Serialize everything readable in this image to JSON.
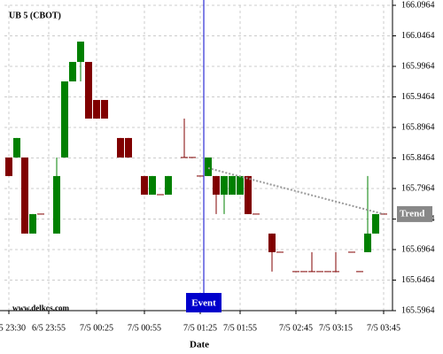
{
  "chart_data": {
    "type": "candlestick",
    "title": "UB 5 (CBOT)",
    "watermark": "www.delkos.com",
    "xlabel": "Date",
    "categories": [
      "6/5 23:30",
      null,
      null,
      null,
      null,
      "6/5 23:55",
      null,
      null,
      null,
      null,
      null,
      "7/5 00:25",
      null,
      null,
      null,
      null,
      null,
      "7/5 00:55",
      null,
      null,
      null,
      null,
      null,
      null,
      "7/5 01:25",
      null,
      null,
      null,
      null,
      "7/5 01:55",
      null,
      null,
      null,
      null,
      null,
      null,
      "7/5 02:45",
      null,
      null,
      null,
      null,
      "7/5 03:15",
      null,
      null,
      null,
      null,
      null,
      "7/5 03:45"
    ],
    "open": [
      165.8472,
      165.8472,
      165.8472,
      165.7226,
      165.7545,
      null,
      165.7226,
      165.8472,
      165.9718,
      166.0037,
      166.0037,
      165.9414,
      165.9414,
      null,
      165.8791,
      165.8791,
      null,
      165.8168,
      165.7863,
      165.7863,
      165.7863,
      null,
      165.8472,
      165.8472,
      165.8168,
      165.8168,
      165.8168,
      165.7863,
      165.7863,
      165.7863,
      165.8168,
      165.7545,
      null,
      165.7226,
      165.6921,
      null,
      165.6603,
      165.6603,
      165.6603,
      165.6603,
      165.6603,
      165.6603,
      null,
      165.6921,
      165.6603,
      165.6921,
      165.7226,
      165.7545
    ],
    "high": [
      165.8472,
      165.8791,
      165.8472,
      165.7545,
      165.7545,
      null,
      165.8472,
      165.9718,
      166.0037,
      166.037,
      166.0037,
      165.9414,
      165.9414,
      null,
      165.8791,
      165.8791,
      null,
      165.8168,
      165.8168,
      165.7863,
      165.8168,
      null,
      165.9109,
      165.8472,
      165.8168,
      165.8472,
      165.8168,
      165.8168,
      165.8168,
      165.8168,
      165.8168,
      165.7545,
      null,
      165.7226,
      165.6921,
      null,
      165.6603,
      165.6603,
      165.6921,
      165.6603,
      165.6603,
      165.6921,
      null,
      165.6921,
      165.6603,
      165.8168,
      165.7545,
      165.7545
    ],
    "low": [
      165.8168,
      165.8472,
      165.7226,
      165.7226,
      165.7545,
      null,
      165.7226,
      165.8472,
      165.9718,
      165.9718,
      165.9109,
      165.9109,
      165.9109,
      null,
      165.8472,
      165.8472,
      null,
      165.7863,
      165.7863,
      165.7863,
      165.7863,
      null,
      165.8472,
      165.8472,
      165.8168,
      165.8168,
      165.7545,
      165.7545,
      165.7863,
      165.7863,
      165.7545,
      165.7545,
      null,
      165.6603,
      165.6921,
      null,
      165.6603,
      165.6603,
      165.6603,
      165.6603,
      165.6603,
      165.6603,
      null,
      165.6921,
      165.6603,
      165.6921,
      165.7226,
      165.7545
    ],
    "close": [
      165.8168,
      165.8791,
      165.7226,
      165.7545,
      165.7545,
      null,
      165.8168,
      165.9718,
      166.0037,
      166.037,
      165.9109,
      165.9109,
      165.9109,
      null,
      165.8472,
      165.8472,
      null,
      165.7863,
      165.8168,
      165.7863,
      165.8168,
      null,
      165.8472,
      165.8472,
      165.8168,
      165.8472,
      165.7863,
      165.8168,
      165.8168,
      165.8168,
      165.7545,
      165.7545,
      null,
      165.6921,
      165.6921,
      null,
      165.6603,
      165.6603,
      165.6603,
      165.6603,
      165.6603,
      165.6603,
      null,
      165.6921,
      165.6603,
      165.7226,
      165.7545,
      165.7545
    ],
    "up_color": "#008000",
    "down_color": "#800000",
    "ylim": [
      165.5964,
      166.0964
    ],
    "yticks": [
      165.5964,
      165.6464,
      165.6964,
      165.7464,
      165.7964,
      165.8464,
      165.8964,
      165.9464,
      165.9964,
      166.0464,
      166.0964
    ],
    "grid": true,
    "event": {
      "label": "Event",
      "x": 24,
      "color": "#0000cc"
    },
    "trend": {
      "label": "Trend",
      "x": [
        25,
        47
      ],
      "values": [
        165.8298,
        165.7545
      ],
      "color": "#999999"
    }
  }
}
